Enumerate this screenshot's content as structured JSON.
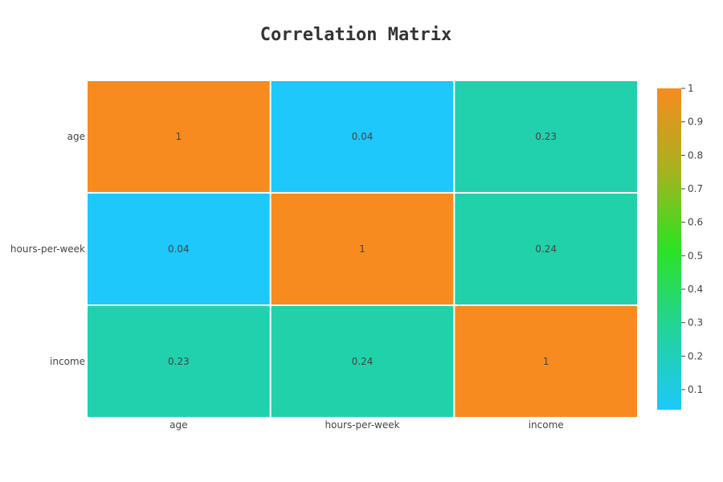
{
  "chart_data": {
    "type": "heatmap",
    "title": "Correlation Matrix",
    "x_categories": [
      "age",
      "hours-per-week",
      "income"
    ],
    "y_categories": [
      "age",
      "hours-per-week",
      "income"
    ],
    "z": [
      [
        1,
        0.04,
        0.23
      ],
      [
        0.04,
        1,
        0.24
      ],
      [
        0.23,
        0.24,
        1
      ]
    ],
    "cell_text": [
      [
        "1",
        "0.04",
        "0.23"
      ],
      [
        "0.04",
        "1",
        "0.24"
      ],
      [
        "0.23",
        "0.24",
        "1"
      ]
    ],
    "colorscale": [
      [
        0.0,
        "#1ec8fa"
      ],
      [
        0.25,
        "#22d39a"
      ],
      [
        0.5,
        "#2de224"
      ],
      [
        0.75,
        "#a8b21f"
      ],
      [
        1.0,
        "#f78b1f"
      ]
    ],
    "zrange": [
      0.04,
      1
    ],
    "colorbar_ticks": [
      "0.1",
      "0.2",
      "0.3",
      "0.4",
      "0.5",
      "0.6",
      "0.7",
      "0.8",
      "0.9",
      "1"
    ],
    "colorbar_tick_values": [
      0.1,
      0.2,
      0.3,
      0.4,
      0.5,
      0.6,
      0.7,
      0.8,
      0.9,
      1
    ],
    "legend_placement": "right",
    "grid": false
  }
}
